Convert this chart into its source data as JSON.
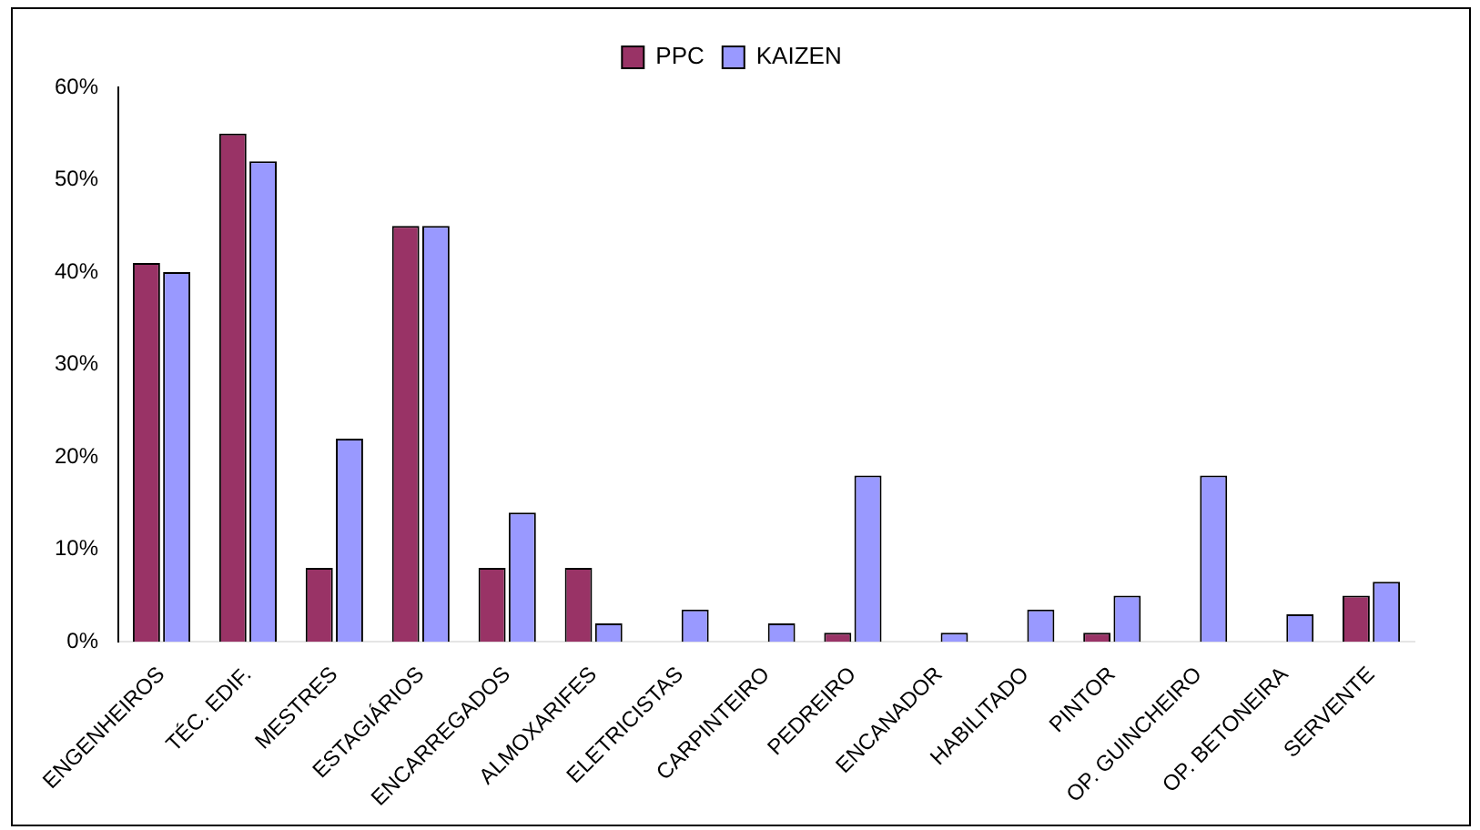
{
  "chart_data": {
    "type": "bar",
    "categories": [
      "ENGENHEIROS",
      "TÉC. EDIF.",
      "MESTRES",
      "ESTAGIÁRIOS",
      "ENCARREGADOS",
      "ALMOXARIFES",
      "ELETRICISTAS",
      "CARPINTEIRO",
      "PEDREIRO",
      "ENCANADOR",
      "HABILITADO",
      "PINTOR",
      "OP. GUINCHEIRO",
      "OP. BETONEIRA",
      "SERVENTE"
    ],
    "series": [
      {
        "name": "PPC",
        "color": "#993366",
        "values": [
          41,
          55,
          8,
          45,
          8,
          8,
          0,
          0,
          1,
          0,
          0,
          1,
          0,
          0,
          5
        ]
      },
      {
        "name": "KAIZEN",
        "color": "#9999ff",
        "values": [
          40,
          52,
          22,
          45,
          14,
          2,
          3.5,
          2,
          18,
          1,
          3.5,
          5,
          18,
          3,
          6.5
        ]
      }
    ],
    "ylim": [
      0,
      60
    ],
    "yticks": [
      {
        "value": 0,
        "label": "0%"
      },
      {
        "value": 10,
        "label": "10%"
      },
      {
        "value": 20,
        "label": "20%"
      },
      {
        "value": 30,
        "label": "30%"
      },
      {
        "value": 40,
        "label": "40%"
      },
      {
        "value": 50,
        "label": "50%"
      },
      {
        "value": 60,
        "label": "60%"
      }
    ],
    "grid": false,
    "legend": "top"
  }
}
